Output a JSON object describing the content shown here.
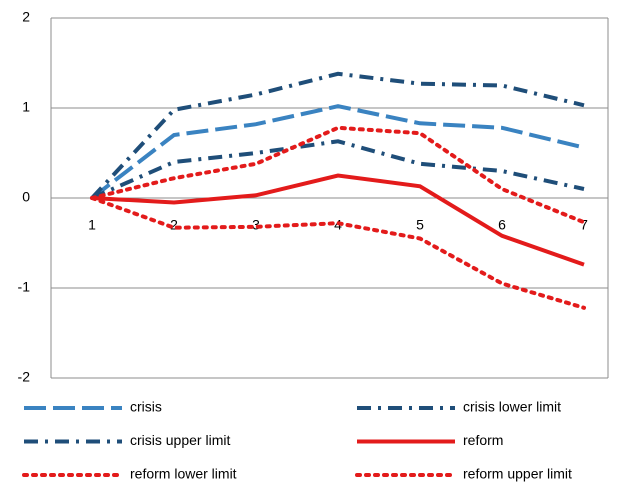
{
  "chart_data": {
    "type": "line",
    "categories": [
      "1",
      "2",
      "3",
      "4",
      "5",
      "6",
      "7"
    ],
    "ylim": [
      -2,
      2
    ],
    "yticks": [
      -2,
      -1,
      0,
      1,
      2
    ],
    "grid": true,
    "legend": "bottom",
    "series": [
      {
        "name": "crisis",
        "color": "#3a83c1",
        "dash": "long-dash",
        "values": [
          0,
          0.7,
          0.82,
          1.02,
          0.83,
          0.78,
          0.56
        ]
      },
      {
        "name": "crisis lower limit",
        "color": "#1f4e79",
        "dash": "dash-dot",
        "values": [
          0,
          0.4,
          0.5,
          0.63,
          0.38,
          0.3,
          0.1
        ]
      },
      {
        "name": "crisis upper limit",
        "color": "#1f4e79",
        "dash": "dash-dot",
        "values": [
          0,
          0.98,
          1.15,
          1.38,
          1.27,
          1.25,
          1.03
        ]
      },
      {
        "name": "reform",
        "color": "#e31b1b",
        "dash": "solid",
        "values": [
          0,
          -0.05,
          0.03,
          0.25,
          0.13,
          -0.42,
          -0.74
        ]
      },
      {
        "name": "reform lower limit",
        "color": "#e31b1b",
        "dash": "dot",
        "values": [
          0,
          -0.33,
          -0.32,
          -0.28,
          -0.45,
          -0.95,
          -1.22
        ]
      },
      {
        "name": "reform upper limit",
        "color": "#e31b1b",
        "dash": "dot",
        "values": [
          0,
          0.22,
          0.38,
          0.78,
          0.72,
          0.1,
          -0.27
        ]
      }
    ]
  }
}
